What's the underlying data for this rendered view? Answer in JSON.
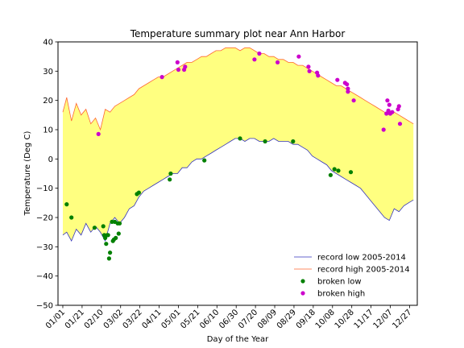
{
  "chart_data": {
    "type": "line",
    "title": "Temperature summary plot near Ann Harbor",
    "xlabel": "Day of the Year",
    "ylabel": "Temperature (Deg C)",
    "ylim": [
      -50,
      40
    ],
    "yticks": [
      -50,
      -40,
      -30,
      -20,
      -10,
      0,
      10,
      20,
      30,
      40
    ],
    "xlim": [
      -4,
      369
    ],
    "x_ticks": [
      {
        "day": 1,
        "label": "01/01"
      },
      {
        "day": 21,
        "label": "01/21"
      },
      {
        "day": 41,
        "label": "02/10"
      },
      {
        "day": 61,
        "label": "03/02"
      },
      {
        "day": 81,
        "label": "03/22"
      },
      {
        "day": 101,
        "label": "04/11"
      },
      {
        "day": 121,
        "label": "05/01"
      },
      {
        "day": 141,
        "label": "05/21"
      },
      {
        "day": 161,
        "label": "06/10"
      },
      {
        "day": 181,
        "label": "06/30"
      },
      {
        "day": 201,
        "label": "07/20"
      },
      {
        "day": 221,
        "label": "08/09"
      },
      {
        "day": 241,
        "label": "08/29"
      },
      {
        "day": 261,
        "label": "09/18"
      },
      {
        "day": 281,
        "label": "10/08"
      },
      {
        "day": 301,
        "label": "10/28"
      },
      {
        "day": 321,
        "label": "11/17"
      },
      {
        "day": 341,
        "label": "12/07"
      },
      {
        "day": 361,
        "label": "12/27"
      }
    ],
    "fill_color": "#ffff80",
    "series": [
      {
        "name": "record low 2005-2014",
        "color": "#3333bb",
        "points": [
          [
            1,
            -26
          ],
          [
            5,
            -25
          ],
          [
            10,
            -28
          ],
          [
            15,
            -24
          ],
          [
            20,
            -26
          ],
          [
            25,
            -22
          ],
          [
            30,
            -25
          ],
          [
            35,
            -23
          ],
          [
            40,
            -25
          ],
          [
            45,
            -28
          ],
          [
            50,
            -22
          ],
          [
            55,
            -20
          ],
          [
            60,
            -22
          ],
          [
            65,
            -20
          ],
          [
            70,
            -17
          ],
          [
            75,
            -16
          ],
          [
            80,
            -13
          ],
          [
            85,
            -11
          ],
          [
            90,
            -10
          ],
          [
            95,
            -9
          ],
          [
            100,
            -8
          ],
          [
            105,
            -7
          ],
          [
            110,
            -6
          ],
          [
            115,
            -5
          ],
          [
            120,
            -5
          ],
          [
            125,
            -3
          ],
          [
            130,
            -3
          ],
          [
            135,
            -1
          ],
          [
            140,
            0
          ],
          [
            145,
            0
          ],
          [
            150,
            1
          ],
          [
            155,
            2
          ],
          [
            160,
            3
          ],
          [
            165,
            4
          ],
          [
            170,
            5
          ],
          [
            175,
            6
          ],
          [
            180,
            7
          ],
          [
            185,
            7
          ],
          [
            190,
            6
          ],
          [
            195,
            7
          ],
          [
            200,
            7
          ],
          [
            205,
            6
          ],
          [
            210,
            6
          ],
          [
            215,
            6
          ],
          [
            220,
            7
          ],
          [
            225,
            6
          ],
          [
            230,
            6
          ],
          [
            235,
            6
          ],
          [
            240,
            5
          ],
          [
            245,
            5
          ],
          [
            250,
            4
          ],
          [
            255,
            3
          ],
          [
            260,
            1
          ],
          [
            265,
            0
          ],
          [
            270,
            -1
          ],
          [
            275,
            -2
          ],
          [
            280,
            -4
          ],
          [
            285,
            -5
          ],
          [
            290,
            -6
          ],
          [
            295,
            -7
          ],
          [
            300,
            -8
          ],
          [
            305,
            -9
          ],
          [
            310,
            -10
          ],
          [
            315,
            -12
          ],
          [
            320,
            -14
          ],
          [
            325,
            -16
          ],
          [
            330,
            -18
          ],
          [
            335,
            -20
          ],
          [
            340,
            -21
          ],
          [
            345,
            -17
          ],
          [
            350,
            -18
          ],
          [
            355,
            -16
          ],
          [
            360,
            -15
          ],
          [
            365,
            -14
          ]
        ]
      },
      {
        "name": "record high 2005-2014",
        "color": "#ff6633",
        "points": [
          [
            1,
            16
          ],
          [
            5,
            21
          ],
          [
            10,
            13
          ],
          [
            15,
            19
          ],
          [
            20,
            15
          ],
          [
            25,
            17
          ],
          [
            30,
            12
          ],
          [
            35,
            14
          ],
          [
            40,
            10
          ],
          [
            45,
            17
          ],
          [
            50,
            16
          ],
          [
            55,
            18
          ],
          [
            60,
            19
          ],
          [
            65,
            20
          ],
          [
            70,
            21
          ],
          [
            75,
            22
          ],
          [
            80,
            24
          ],
          [
            85,
            25
          ],
          [
            90,
            26
          ],
          [
            95,
            27
          ],
          [
            100,
            28
          ],
          [
            105,
            28
          ],
          [
            110,
            29
          ],
          [
            115,
            30
          ],
          [
            120,
            31
          ],
          [
            125,
            32
          ],
          [
            130,
            33
          ],
          [
            135,
            33
          ],
          [
            140,
            34
          ],
          [
            145,
            35
          ],
          [
            150,
            35
          ],
          [
            155,
            36
          ],
          [
            160,
            37
          ],
          [
            165,
            37
          ],
          [
            170,
            38
          ],
          [
            175,
            38
          ],
          [
            180,
            38
          ],
          [
            185,
            37
          ],
          [
            190,
            38
          ],
          [
            195,
            38
          ],
          [
            200,
            37
          ],
          [
            205,
            36
          ],
          [
            210,
            36
          ],
          [
            215,
            35
          ],
          [
            220,
            35
          ],
          [
            225,
            34
          ],
          [
            230,
            34
          ],
          [
            235,
            33
          ],
          [
            240,
            33
          ],
          [
            245,
            32
          ],
          [
            250,
            32
          ],
          [
            255,
            31
          ],
          [
            260,
            30
          ],
          [
            265,
            29
          ],
          [
            270,
            28
          ],
          [
            275,
            27
          ],
          [
            280,
            26
          ],
          [
            285,
            25
          ],
          [
            290,
            25
          ],
          [
            295,
            24
          ],
          [
            300,
            23
          ],
          [
            305,
            22
          ],
          [
            310,
            21
          ],
          [
            315,
            20
          ],
          [
            320,
            19
          ],
          [
            325,
            18
          ],
          [
            330,
            17
          ],
          [
            335,
            16
          ],
          [
            340,
            15
          ],
          [
            345,
            16
          ],
          [
            350,
            15
          ],
          [
            355,
            14
          ],
          [
            360,
            13
          ],
          [
            365,
            12
          ]
        ]
      },
      {
        "name": "broken low",
        "color": "#008000",
        "marker": "circle",
        "points": [
          [
            5,
            -15.5
          ],
          [
            10,
            -20
          ],
          [
            34,
            -23.5
          ],
          [
            43,
            -23
          ],
          [
            44,
            -26
          ],
          [
            45,
            -27
          ],
          [
            46,
            -29
          ],
          [
            47,
            -26
          ],
          [
            48,
            -26
          ],
          [
            49,
            -34
          ],
          [
            50,
            -32
          ],
          [
            52,
            -21.5
          ],
          [
            53,
            -28
          ],
          [
            54,
            -27.5
          ],
          [
            55,
            -21.5
          ],
          [
            56,
            -27
          ],
          [
            58,
            -22
          ],
          [
            59,
            -25.5
          ],
          [
            60,
            -22
          ],
          [
            78,
            -12
          ],
          [
            80,
            -11.5
          ],
          [
            112,
            -7
          ],
          [
            113,
            -5
          ],
          [
            148,
            -0.5
          ],
          [
            185,
            7
          ],
          [
            211,
            6
          ],
          [
            240,
            6
          ],
          [
            279,
            -5.5
          ],
          [
            283,
            -3.5
          ],
          [
            287,
            -4
          ],
          [
            300,
            -4.5
          ]
        ]
      },
      {
        "name": "broken high",
        "color": "#cc00cc",
        "marker": "circle",
        "points": [
          [
            38,
            8.5
          ],
          [
            104,
            28
          ],
          [
            120,
            33
          ],
          [
            121,
            30.5
          ],
          [
            127,
            30.5
          ],
          [
            128,
            31.5
          ],
          [
            200,
            34
          ],
          [
            205,
            36
          ],
          [
            224,
            33
          ],
          [
            246,
            35
          ],
          [
            256,
            31.5
          ],
          [
            257,
            30
          ],
          [
            265,
            29.5
          ],
          [
            266,
            28.5
          ],
          [
            286,
            27
          ],
          [
            294,
            26
          ],
          [
            296,
            25.5
          ],
          [
            297,
            24
          ],
          [
            297,
            23
          ],
          [
            303,
            20
          ],
          [
            334,
            10
          ],
          [
            337,
            15.5
          ],
          [
            338,
            20
          ],
          [
            339,
            16.5
          ],
          [
            340,
            18.5
          ],
          [
            341,
            15.5
          ],
          [
            343,
            16
          ],
          [
            349,
            17
          ],
          [
            350,
            18
          ],
          [
            351,
            12
          ]
        ]
      }
    ],
    "legend": {
      "placement": "lower-right",
      "entries": [
        {
          "label": "record low 2005-2014",
          "kind": "line",
          "color": "#3333bb"
        },
        {
          "label": "record high 2005-2014",
          "kind": "line",
          "color": "#ff6633"
        },
        {
          "label": "broken low",
          "kind": "marker",
          "color": "#008000"
        },
        {
          "label": "broken high",
          "kind": "marker",
          "color": "#cc00cc"
        }
      ]
    }
  }
}
